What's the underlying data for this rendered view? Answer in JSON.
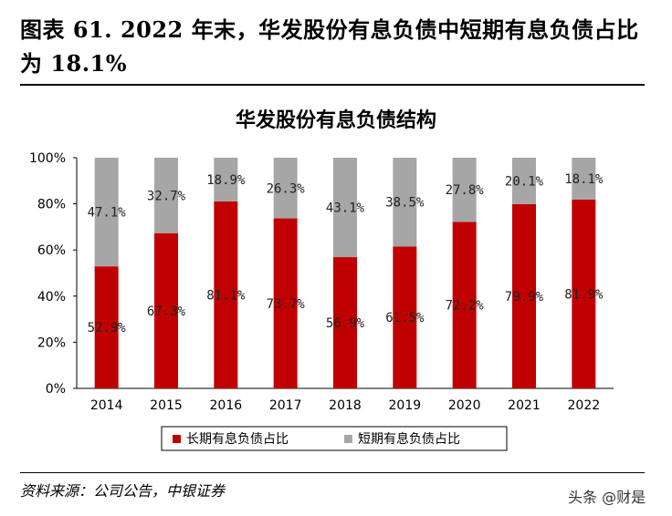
{
  "figure": {
    "title": "图表 61. 2022 年末，华发股份有息负债中短期有息负债占比为 18.1%",
    "source": "资料来源：公司公告，中银证券",
    "watermark": "头条 @财是"
  },
  "chart_data": {
    "type": "bar",
    "stacked": true,
    "title": "华发股份有息负债结构",
    "categories": [
      "2014",
      "2015",
      "2016",
      "2017",
      "2018",
      "2019",
      "2020",
      "2021",
      "2022"
    ],
    "series": [
      {
        "name": "长期有息负债占比",
        "color": "#c00000",
        "values": [
          52.9,
          67.3,
          81.1,
          73.7,
          56.9,
          61.5,
          72.2,
          79.9,
          81.9
        ],
        "labels": [
          "52.9%",
          "67.3%",
          "81.1%",
          "73.7%",
          "56.9%",
          "61.5%",
          "72.2%",
          "79.9%",
          "81.9%"
        ]
      },
      {
        "name": "短期有息负债占比",
        "color": "#a6a6a6",
        "values": [
          47.1,
          32.7,
          18.9,
          26.3,
          43.1,
          38.5,
          27.8,
          20.1,
          18.1
        ],
        "labels": [
          "47.1%",
          "32.7%",
          "18.9%",
          "26.3%",
          "43.1%",
          "38.5%",
          "27.8%",
          "20.1%",
          "18.1%"
        ]
      }
    ],
    "ylim": [
      0,
      100
    ],
    "yticks": [
      "0%",
      "20%",
      "40%",
      "60%",
      "80%",
      "100%"
    ],
    "ytick_values": [
      0,
      20,
      40,
      60,
      80,
      100
    ],
    "legend_position": "bottom",
    "grid": false
  }
}
